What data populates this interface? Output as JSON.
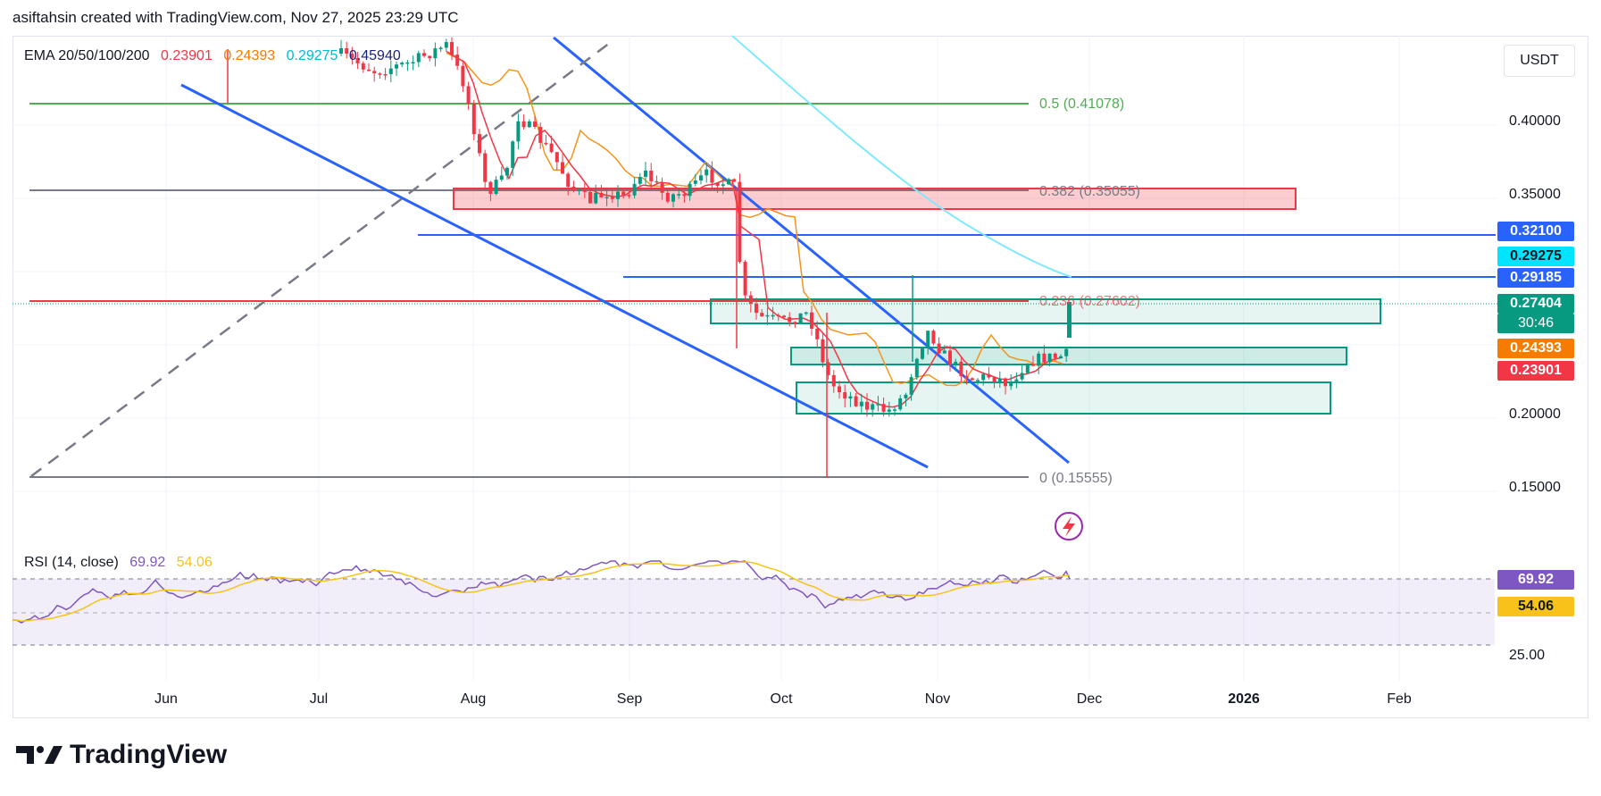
{
  "header": {
    "attribution": "asiftahsin created with TradingView.com, Nov 27, 2025 23:29 UTC"
  },
  "ema_legend": {
    "label": "EMA 20/50/100/200",
    "v20": "0.23901",
    "v50": "0.24393",
    "v100": "0.29275",
    "v200": "0.45940"
  },
  "rsi_legend": {
    "label": "RSI (14, close)",
    "rsi": "69.92",
    "ma": "54.06"
  },
  "currency": "USDT",
  "logo_text": "TradingView",
  "colors": {
    "green": "#089981",
    "red": "#f23645",
    "blue": "#2962ff",
    "orange": "#f7931a",
    "cyan": "#00e5ff",
    "purple": "#7e57c2",
    "yellow": "#f7c31a"
  },
  "tags": {
    "t1": {
      "text": "0.32100",
      "color": "#2962ff"
    },
    "t2": {
      "text": "0.29275",
      "color": "#00e5ff"
    },
    "t3": {
      "text": "0.29185",
      "color": "#2962ff"
    },
    "t4": {
      "text": "0.27404",
      "color": "#089981"
    },
    "t4b": {
      "text": "30:46",
      "color": "#089981"
    },
    "t5": {
      "text": "0.24393",
      "color": "#f57c00"
    },
    "t6": {
      "text": "0.23901",
      "color": "#f23645"
    },
    "rsi1": {
      "text": "69.92",
      "color": "#7e57c2"
    },
    "rsi2": {
      "text": "54.06",
      "color": "#f7c31a"
    }
  },
  "fib": {
    "f05": "0.5 (0.41078)",
    "f0382": "0.382 (0.35055)",
    "f0236": "0.236 (0.27602)",
    "f0": "0 (0.15555)"
  },
  "chart_data": {
    "type": "line",
    "title": "EMA 20/50/100/200",
    "price_axis_ticks": [
      "0.40000",
      "0.35000",
      "0.20000",
      "0.15000"
    ],
    "rsi_axis_ticks": [
      "25.00"
    ],
    "x_ticks": [
      "Jun",
      "Jul",
      "Aug",
      "Sep",
      "Oct",
      "Nov",
      "Dec",
      "2026",
      "Feb"
    ],
    "ylim": [
      0.115,
      0.46
    ],
    "fib_levels": [
      {
        "level": "0.5",
        "price": 0.41078
      },
      {
        "level": "0.382",
        "price": 0.35055
      },
      {
        "level": "0.236",
        "price": 0.27602
      },
      {
        "level": "0",
        "price": 0.15555
      }
    ],
    "horizontal_levels": [
      0.321,
      0.29185
    ],
    "zones": [
      {
        "type": "resistance",
        "from": 0.337,
        "to": 0.352
      },
      {
        "type": "support",
        "from": 0.262,
        "to": 0.278
      },
      {
        "type": "support",
        "from": 0.232,
        "to": 0.244
      },
      {
        "type": "support",
        "from": 0.199,
        "to": 0.219
      }
    ],
    "series": [
      {
        "name": "Close",
        "x": [
          0,
          2,
          4,
          6,
          8,
          10,
          12,
          14,
          16,
          18,
          20,
          22,
          24,
          26,
          28
        ],
        "values": [
          0.45,
          0.43,
          0.38,
          0.37,
          0.36,
          0.35,
          0.35,
          0.26,
          0.25,
          0.22,
          0.2,
          0.2,
          0.22,
          0.23,
          0.274
        ]
      },
      {
        "name": "EMA20",
        "x": [
          0,
          2,
          4,
          6,
          8,
          10,
          12,
          14,
          16,
          18,
          20,
          22,
          24,
          26,
          28
        ],
        "values": [
          0.46,
          0.44,
          0.4,
          0.38,
          0.36,
          0.355,
          0.35,
          0.3,
          0.26,
          0.23,
          0.215,
          0.215,
          0.225,
          0.232,
          0.239
        ]
      },
      {
        "name": "EMA50",
        "x": [
          0,
          2,
          4,
          6,
          8,
          10,
          12,
          14,
          16,
          18,
          20,
          22,
          24,
          26,
          28
        ],
        "values": [
          0.47,
          0.46,
          0.43,
          0.4,
          0.38,
          0.37,
          0.36,
          0.33,
          0.3,
          0.27,
          0.25,
          0.24,
          0.24,
          0.242,
          0.244
        ]
      }
    ],
    "rsi": {
      "current": 69.92,
      "ma": 54.06,
      "upper": 70,
      "lower": 30,
      "ylim": [
        20,
        80
      ]
    }
  }
}
